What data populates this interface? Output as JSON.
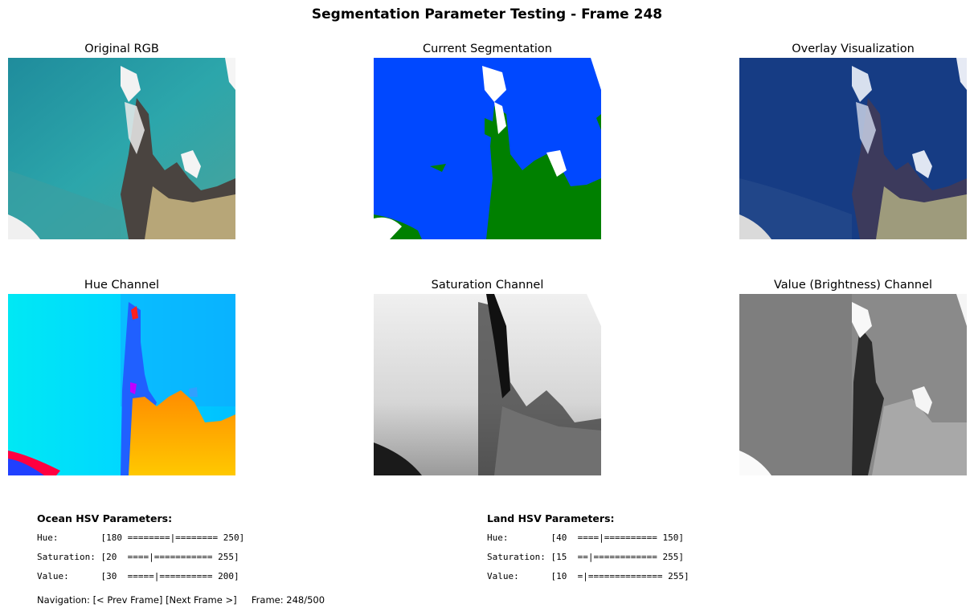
{
  "title": "Segmentation Parameter Testing - Frame 248",
  "panels": {
    "original": "Original RGB",
    "segmentation": "Current Segmentation",
    "overlay": "Overlay Visualization",
    "hue": "Hue Channel",
    "saturation": "Saturation Channel",
    "value": "Value (Brightness) Channel"
  },
  "ocean": {
    "heading": "Ocean HSV Parameters:",
    "hue": "Hue:        [180 ========|======== 250]",
    "saturation": "Saturation: [20  ====|=========== 255]",
    "value": "Value:      [30  =====|========== 200]"
  },
  "land": {
    "heading": "Land HSV Parameters:",
    "hue": "Hue:        [40  ====|========== 150]",
    "saturation": "Saturation: [15  ==|============ 255]",
    "value": "Value:      [10  =|============== 255]"
  },
  "navigation": {
    "label": "Navigation:",
    "prev": "[< Prev Frame]",
    "next": "[Next Frame >]",
    "frame": "Frame: 248/500"
  },
  "colors": {
    "ocean_mask": "#0048ff",
    "land_mask": "#008000",
    "ocean_rgb": "#2a9aa5",
    "land_rgb": "#b9a874"
  }
}
